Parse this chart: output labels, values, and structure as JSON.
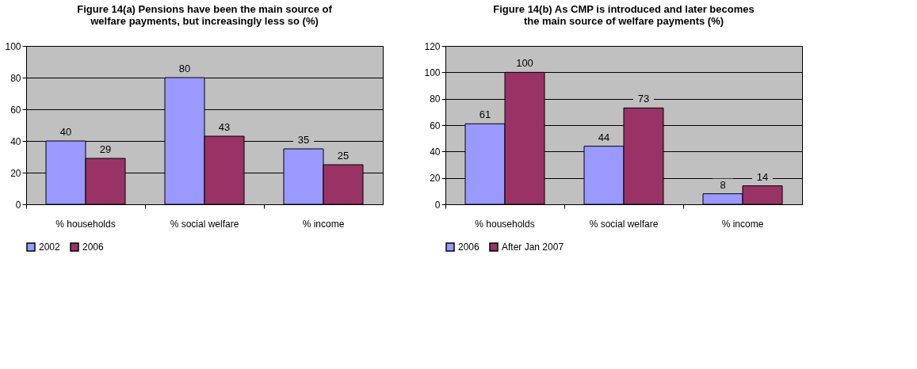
{
  "chart_data": [
    {
      "type": "bar",
      "title": "Figure 14(a)  Pensions have been the main source of welfare payments, but increasingly less so (%)",
      "categories": [
        "% households",
        "% social welfare",
        "% income"
      ],
      "series": [
        {
          "name": "2002",
          "color": "#9999ff",
          "values": [
            40,
            80,
            35
          ]
        },
        {
          "name": "2006",
          "color": "#993366",
          "values": [
            29,
            43,
            25
          ]
        }
      ],
      "ylim": [
        0,
        100
      ],
      "yticks": [
        0,
        20,
        40,
        60,
        80,
        100
      ],
      "grid": "y",
      "legend": "bottom",
      "data_labels": true
    },
    {
      "type": "bar",
      "title": "Figure 14(b)  As CMP is introduced and later becomes the main source of welfare payments (%)",
      "categories": [
        "% households",
        "% social welfare",
        "% income"
      ],
      "series": [
        {
          "name": "2006",
          "color": "#9999ff",
          "values": [
            61,
            44,
            8
          ]
        },
        {
          "name": "After Jan 2007",
          "color": "#993366",
          "values": [
            100,
            73,
            14
          ]
        }
      ],
      "ylim": [
        0,
        120
      ],
      "yticks": [
        0,
        20,
        40,
        60,
        80,
        100,
        120
      ],
      "grid": "y",
      "legend": "bottom",
      "data_labels": true
    }
  ]
}
